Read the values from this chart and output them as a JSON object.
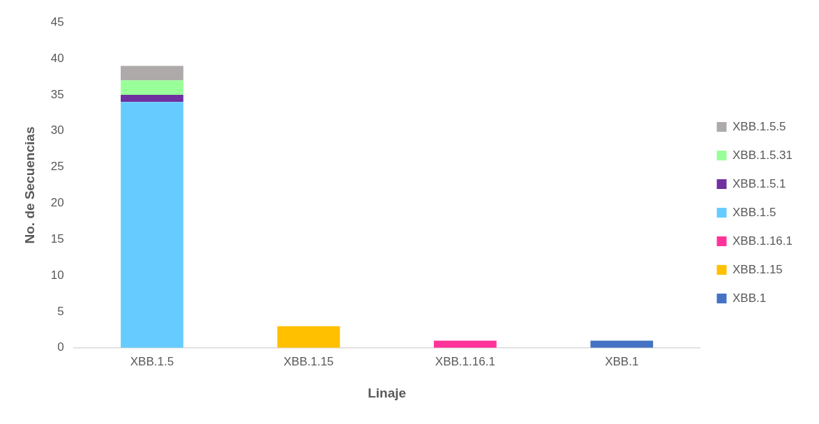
{
  "chart_data": {
    "type": "bar",
    "stacked": true,
    "xlabel": "Linaje",
    "ylabel": "No. de Secuencias",
    "categories": [
      "XBB.1.5",
      "XBB.1.15",
      "XBB.1.16.1",
      "XBB.1"
    ],
    "series": [
      {
        "name": "XBB.1",
        "color": "#4472c4",
        "values": [
          null,
          null,
          null,
          1
        ]
      },
      {
        "name": "XBB.1.15",
        "color": "#ffc000",
        "values": [
          null,
          3,
          null,
          null
        ]
      },
      {
        "name": "XBB.1.16.1",
        "color": "#ff3399",
        "values": [
          null,
          null,
          1,
          null
        ]
      },
      {
        "name": "XBB.1.5",
        "color": "#66ccff",
        "values": [
          34,
          null,
          null,
          null
        ]
      },
      {
        "name": "XBB.1.5.1",
        "color": "#7030a0",
        "values": [
          1,
          null,
          null,
          null
        ]
      },
      {
        "name": "XBB.1.5.31",
        "color": "#99ff99",
        "values": [
          2,
          null,
          null,
          null
        ]
      },
      {
        "name": "XBB.1.5.5",
        "color": "#aeaaaa",
        "values": [
          2,
          null,
          null,
          null
        ]
      }
    ],
    "ylim": [
      0,
      45
    ],
    "yticks": [
      0,
      5,
      10,
      15,
      20,
      25,
      30,
      35,
      40,
      45
    ],
    "grid": false,
    "legend": "right"
  }
}
